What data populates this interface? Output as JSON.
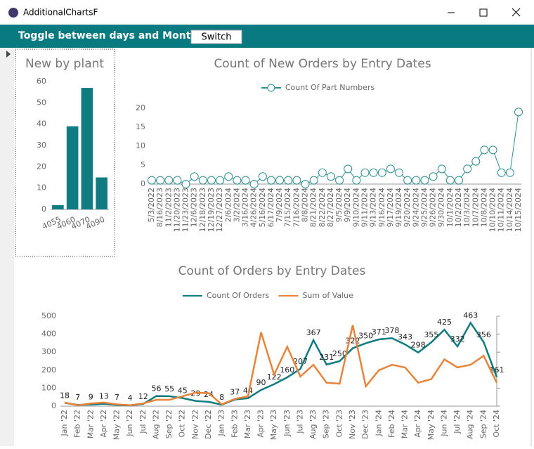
{
  "window": {
    "title": "AdditionalChartsF"
  },
  "toolbar": {
    "label": "Toggle between days and Months",
    "button": "Switch"
  },
  "chart_data": [
    {
      "type": "bar",
      "title": "New by plant",
      "categories": [
        "4055",
        "4060",
        "4070",
        "4090"
      ],
      "values": [
        2,
        39,
        57,
        15
      ],
      "color": "#0e7c80",
      "ylim": [
        0,
        60
      ],
      "yticks": [
        0,
        10,
        20,
        30,
        40,
        50,
        60
      ]
    },
    {
      "type": "line",
      "title": "Count of New Orders by Entry Dates",
      "categories": [
        "5/3/2022",
        "8/16/2023",
        "11/2/2023",
        "11/20/2023",
        "11/23/2023",
        "12/6/2023",
        "12/18/2023",
        "12/19/2023",
        "12/27/2023",
        "2/6/2024",
        "3/2/2024",
        "3/16/2024",
        "4/26/2024",
        "5/16/2024",
        "6/17/2024",
        "7/9/2024",
        "7/15/2024",
        "7/16/2024",
        "8/8/2024",
        "8/21/2024",
        "8/22/2024",
        "8/27/2024",
        "9/5/2024",
        "9/9/2024",
        "9/10/2024",
        "9/11/2024",
        "9/13/2024",
        "9/16/2024",
        "9/17/2024",
        "9/19/2024",
        "9/20/2024",
        "9/24/2024",
        "9/25/2024",
        "9/26/2024",
        "9/30/2024",
        "10/1/2024",
        "10/2/2024",
        "10/3/2024",
        "10/7/2024",
        "10/8/2024",
        "10/10/2024",
        "10/11/2024",
        "10/14/2024",
        "10/15/2024"
      ],
      "series": [
        {
          "name": "Count Of Part Numbers",
          "color": "#2a8e91",
          "values": [
            1,
            1,
            1,
            1,
            0,
            2,
            1,
            1,
            1,
            2,
            1,
            1,
            0,
            2,
            1,
            1,
            1,
            1,
            0,
            1,
            3,
            2,
            1,
            4,
            1,
            3,
            3,
            3,
            4,
            3,
            1,
            1,
            1,
            2,
            4,
            1,
            1,
            4,
            6,
            9,
            9,
            3,
            3,
            19
          ]
        }
      ],
      "ylim": [
        0,
        20
      ],
      "yticks": [
        0,
        5,
        10,
        15,
        20
      ]
    },
    {
      "type": "line",
      "title": "Count of Orders by Entry Dates",
      "categories": [
        "Jan '22",
        "Feb '22",
        "Mar '22",
        "Apr '22",
        "May '22",
        "Jun '22",
        "Jul '22",
        "Aug '22",
        "Sep '22",
        "Oct '22",
        "Nov '22",
        "Dec '22",
        "Jan '23",
        "Feb '23",
        "Mar '23",
        "Apr '23",
        "May '23",
        "Jun '23",
        "Jul '23",
        "Aug '23",
        "Sep '23",
        "Oct '23",
        "Nov '23",
        "Dec '23",
        "Jan '24",
        "Feb '24",
        "Mar '24",
        "Apr '24",
        "May '24",
        "Jun '24",
        "Jul '24",
        "Aug '24",
        "Sep '24",
        "Oct '24"
      ],
      "series": [
        {
          "name": "Count Of Orders",
          "color": "#0e7c80",
          "labels": true,
          "values": [
            18,
            7,
            9,
            13,
            7,
            4,
            12,
            56,
            55,
            45,
            29,
            24,
            8,
            37,
            44,
            90,
            122,
            160,
            207,
            367,
            231,
            250,
            322,
            350,
            371,
            378,
            343,
            298,
            355,
            425,
            332,
            463,
            356,
            161
          ]
        },
        {
          "name": "Sum of Value",
          "color": "#e8843a",
          "values": [
            20,
            5,
            15,
            20,
            10,
            5,
            15,
            35,
            35,
            55,
            75,
            72,
            10,
            40,
            55,
            410,
            175,
            330,
            165,
            230,
            130,
            125,
            450,
            110,
            200,
            230,
            215,
            130,
            150,
            260,
            215,
            230,
            280,
            130
          ]
        }
      ],
      "ylim": [
        0,
        500
      ],
      "yticks": [
        0,
        100,
        200,
        300,
        400,
        500
      ]
    }
  ]
}
